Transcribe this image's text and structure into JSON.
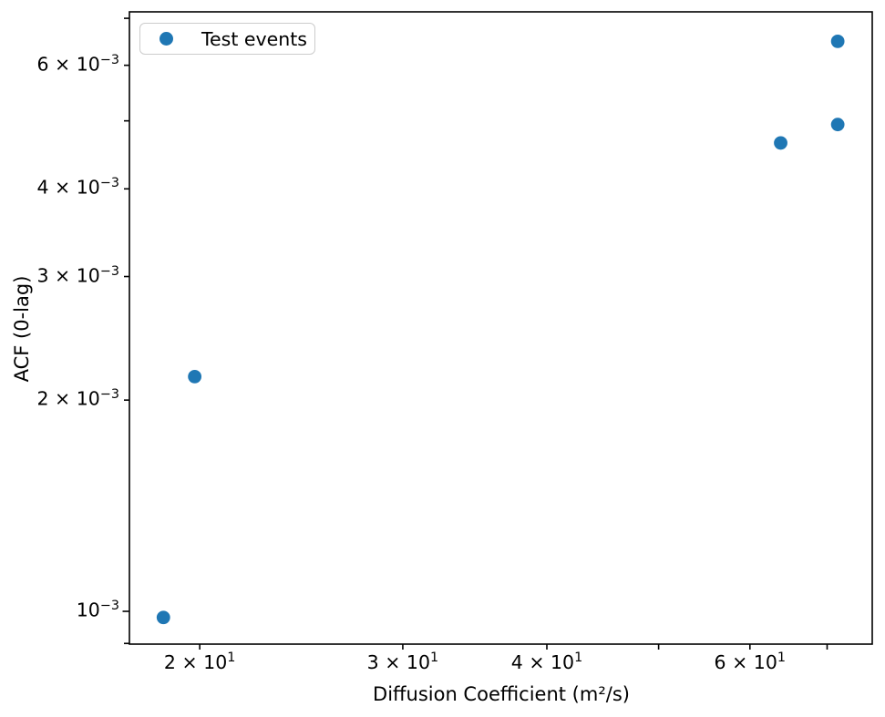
{
  "figure": {
    "background": "#ffffff"
  },
  "chart_data": {
    "type": "scatter",
    "title": "",
    "xlabel": "Diffusion Coefficient (m²/s)",
    "ylabel": "ACF (0-lag)",
    "xscale": "log",
    "yscale": "log",
    "xlim": [
      17.38,
      76.6
    ],
    "ylim": [
      0.000898,
      0.00715
    ],
    "grid": false,
    "legend": {
      "label": "Test events",
      "position": "upper left"
    },
    "series": [
      {
        "name": "Test events",
        "color": "#1f77b4",
        "marker": "circle",
        "points": [
          [
            18.6,
            0.00098
          ],
          [
            19.8,
            0.00216
          ],
          [
            63.8,
            0.00465
          ],
          [
            71.5,
            0.00494
          ],
          [
            71.5,
            0.00649
          ]
        ]
      }
    ],
    "x_ticks": [
      {
        "value": 20,
        "m": "2",
        "e": "1",
        "labeled": true
      },
      {
        "value": 30,
        "m": "3",
        "e": "1",
        "labeled": true
      },
      {
        "value": 40,
        "m": "4",
        "e": "1",
        "labeled": true
      },
      {
        "value": 50,
        "labeled": false
      },
      {
        "value": 60,
        "m": "6",
        "e": "1",
        "labeled": true
      },
      {
        "value": 70,
        "labeled": false
      }
    ],
    "y_ticks": [
      {
        "value": 0.0009,
        "labeled": false
      },
      {
        "value": 0.001,
        "m": "",
        "e": "−3",
        "labeled": true,
        "major": true
      },
      {
        "value": 0.002,
        "m": "2",
        "e": "−3",
        "labeled": true
      },
      {
        "value": 0.003,
        "m": "3",
        "e": "−3",
        "labeled": true
      },
      {
        "value": 0.004,
        "m": "4",
        "e": "−3",
        "labeled": true
      },
      {
        "value": 0.005,
        "labeled": false
      },
      {
        "value": 0.006,
        "m": "6",
        "e": "−3",
        "labeled": true
      },
      {
        "value": 0.007,
        "labeled": false
      }
    ],
    "times_sign": "×"
  },
  "colors": {
    "marker": "#1f77b4",
    "spine": "#000000",
    "text": "#000000",
    "legend_border": "#cccccc"
  }
}
